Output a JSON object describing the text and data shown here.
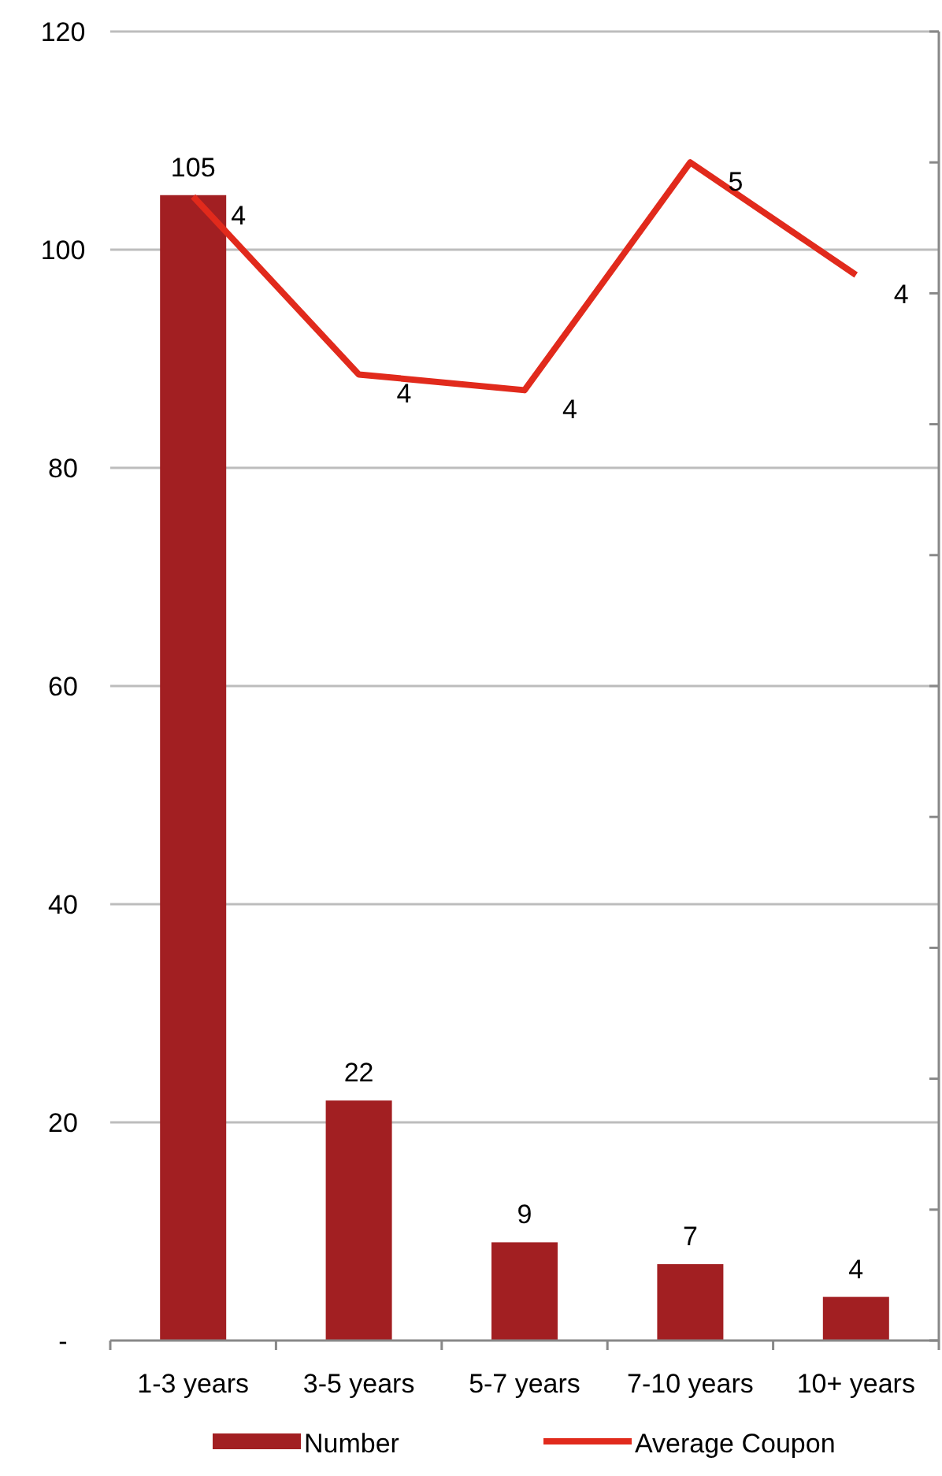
{
  "chart_data": {
    "type": "bar",
    "categories": [
      "1-3 years",
      "3-5 years",
      "5-7 years",
      "7-10 years",
      "10+ years"
    ],
    "series": [
      {
        "name": "Number",
        "color": "#a21f22",
        "values": [
          105,
          22,
          9,
          7,
          4
        ],
        "value_labels": [
          "105",
          "22",
          "9",
          "7",
          "4"
        ]
      },
      {
        "name": "Average Coupon",
        "type": "line",
        "axis": "y2",
        "color": "#e12a1c",
        "values": [
          4.37,
          3.69,
          3.63,
          4.5,
          4.07
        ],
        "value_labels": [
          "4",
          "4",
          "4",
          "5",
          "4"
        ]
      }
    ],
    "ylim": [
      0,
      120
    ],
    "yticks": [
      {
        "value": 0,
        "label": "-"
      },
      20,
      40,
      60,
      80,
      100,
      120
    ],
    "y2lim": [
      0,
      5
    ],
    "y2ticks": [
      {
        "value": 0,
        "label": null
      },
      {
        "value": 0.5,
        "label": null
      },
      {
        "value": 1,
        "label": null
      },
      {
        "value": 1.5,
        "label": null
      },
      {
        "value": 2,
        "label": null
      },
      {
        "value": 2.5,
        "label": null
      },
      {
        "value": 3,
        "label": null
      },
      {
        "value": 3.5,
        "label": null
      },
      {
        "value": 4,
        "label": null
      },
      {
        "value": 4.5,
        "label": null
      },
      {
        "value": 5,
        "label": null
      }
    ],
    "tick_labels": "xy",
    "grid": "y",
    "legend": "bottom",
    "marker": "none",
    "line_style": "solid"
  }
}
